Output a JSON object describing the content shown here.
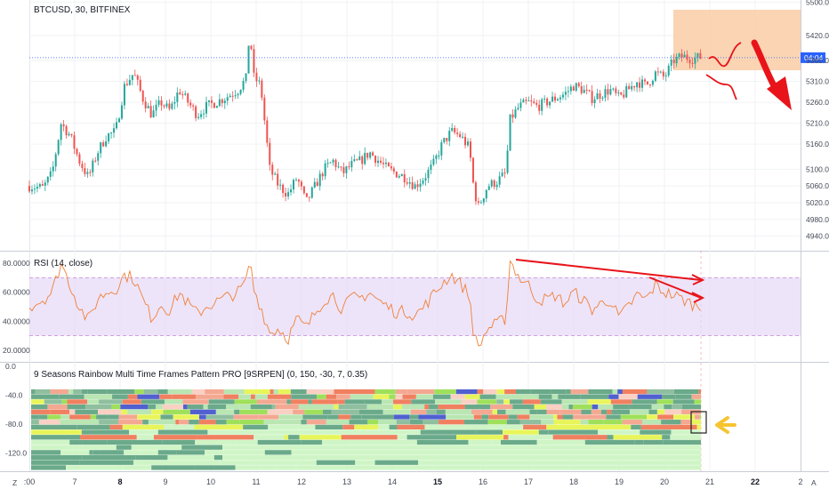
{
  "chart_data": [
    {
      "type": "candlestick",
      "title": "BTCUSD, 30, BITFINEX",
      "price_tag": "04:04",
      "current_price": 5367,
      "ylim": [
        4905,
        5505
      ],
      "y_ticks": [
        5500.0,
        5420.0,
        5360.0,
        5310.0,
        5260.0,
        5210.0,
        5160.0,
        5100.0,
        5060.0,
        5020.0,
        4980.0,
        4940.0
      ],
      "y_tick_labels": [
        "5500.0",
        "5420.0",
        "5360.0",
        "5310.0",
        "5260.0",
        "5210.0",
        "5160.0",
        "5100.0",
        "5060.0",
        "5020.0",
        "4980.0",
        "4940.0"
      ],
      "close_path": [
        [
          6.0,
          5060
        ],
        [
          6.3,
          5055
        ],
        [
          6.5,
          5090
        ],
        [
          6.7,
          5210
        ],
        [
          6.9,
          5180
        ],
        [
          7.1,
          5120
        ],
        [
          7.3,
          5080
        ],
        [
          7.5,
          5140
        ],
        [
          7.7,
          5180
        ],
        [
          7.9,
          5190
        ],
        [
          8.1,
          5300
        ],
        [
          8.3,
          5330
        ],
        [
          8.5,
          5270
        ],
        [
          8.7,
          5230
        ],
        [
          8.9,
          5260
        ],
        [
          9.1,
          5240
        ],
        [
          9.3,
          5290
        ],
        [
          9.5,
          5260
        ],
        [
          9.7,
          5230
        ],
        [
          9.9,
          5250
        ],
        [
          10.1,
          5260
        ],
        [
          10.3,
          5270
        ],
        [
          10.6,
          5290
        ],
        [
          10.8,
          5320
        ],
        [
          10.85,
          5440
        ],
        [
          10.95,
          5320
        ],
        [
          11.1,
          5300
        ],
        [
          11.3,
          5100
        ],
        [
          11.5,
          5060
        ],
        [
          11.7,
          5040
        ],
        [
          11.9,
          5080
        ],
        [
          12.1,
          5020
        ],
        [
          12.3,
          5060
        ],
        [
          12.5,
          5100
        ],
        [
          12.7,
          5120
        ],
        [
          12.9,
          5090
        ],
        [
          13.1,
          5110
        ],
        [
          13.3,
          5120
        ],
        [
          13.5,
          5140
        ],
        [
          13.7,
          5120
        ],
        [
          13.9,
          5100
        ],
        [
          14.1,
          5090
        ],
        [
          14.3,
          5080
        ],
        [
          14.5,
          5060
        ],
        [
          14.7,
          5080
        ],
        [
          14.9,
          5110
        ],
        [
          15.1,
          5160
        ],
        [
          15.3,
          5190
        ],
        [
          15.5,
          5180
        ],
        [
          15.7,
          5150
        ],
        [
          15.8,
          5050
        ],
        [
          15.9,
          5010
        ],
        [
          16.1,
          5060
        ],
        [
          16.3,
          5070
        ],
        [
          16.5,
          5090
        ],
        [
          16.6,
          5220
        ],
        [
          16.8,
          5250
        ],
        [
          17.0,
          5260
        ],
        [
          17.2,
          5250
        ],
        [
          17.4,
          5260
        ],
        [
          17.6,
          5270
        ],
        [
          17.8,
          5280
        ],
        [
          18.0,
          5300
        ],
        [
          18.2,
          5290
        ],
        [
          18.4,
          5270
        ],
        [
          18.6,
          5280
        ],
        [
          18.8,
          5290
        ],
        [
          19.0,
          5270
        ],
        [
          19.2,
          5290
        ],
        [
          19.4,
          5310
        ],
        [
          19.6,
          5300
        ],
        [
          19.8,
          5330
        ],
        [
          20.0,
          5320
        ],
        [
          20.2,
          5360
        ],
        [
          20.4,
          5370
        ],
        [
          20.6,
          5365
        ],
        [
          20.8,
          5368
        ]
      ],
      "annotations": [
        "target zone rectangle",
        "red projection arrows"
      ]
    },
    {
      "type": "line",
      "title": "RSI (14, close)",
      "ylim": [
        12,
        88
      ],
      "y_ticks": [
        80,
        60,
        40,
        20
      ],
      "y_tick_labels": [
        "80.0000",
        "60.0000",
        "40.0000",
        "20.0000"
      ],
      "band": [
        30,
        70
      ],
      "path": [
        [
          6.0,
          50
        ],
        [
          6.3,
          55
        ],
        [
          6.5,
          60
        ],
        [
          6.7,
          80
        ],
        [
          6.9,
          65
        ],
        [
          7.1,
          50
        ],
        [
          7.3,
          40
        ],
        [
          7.5,
          55
        ],
        [
          7.7,
          60
        ],
        [
          7.9,
          62
        ],
        [
          8.1,
          72
        ],
        [
          8.3,
          70
        ],
        [
          8.5,
          55
        ],
        [
          8.7,
          42
        ],
        [
          8.9,
          52
        ],
        [
          9.1,
          47
        ],
        [
          9.3,
          60
        ],
        [
          9.5,
          52
        ],
        [
          9.7,
          45
        ],
        [
          9.9,
          50
        ],
        [
          10.1,
          53
        ],
        [
          10.3,
          56
        ],
        [
          10.6,
          60
        ],
        [
          10.8,
          68
        ],
        [
          10.85,
          84
        ],
        [
          10.95,
          62
        ],
        [
          11.1,
          50
        ],
        [
          11.3,
          32
        ],
        [
          11.5,
          35
        ],
        [
          11.7,
          28
        ],
        [
          11.9,
          42
        ],
        [
          12.1,
          35
        ],
        [
          12.3,
          46
        ],
        [
          12.5,
          55
        ],
        [
          12.7,
          58
        ],
        [
          12.9,
          48
        ],
        [
          13.1,
          56
        ],
        [
          13.3,
          56
        ],
        [
          13.5,
          60
        ],
        [
          13.7,
          54
        ],
        [
          13.9,
          50
        ],
        [
          14.1,
          46
        ],
        [
          14.3,
          47
        ],
        [
          14.5,
          44
        ],
        [
          14.7,
          50
        ],
        [
          14.9,
          58
        ],
        [
          15.1,
          66
        ],
        [
          15.3,
          72
        ],
        [
          15.5,
          66
        ],
        [
          15.7,
          58
        ],
        [
          15.8,
          30
        ],
        [
          15.9,
          22
        ],
        [
          16.1,
          35
        ],
        [
          16.3,
          38
        ],
        [
          16.5,
          42
        ],
        [
          16.6,
          82
        ],
        [
          16.8,
          70
        ],
        [
          17.0,
          65
        ],
        [
          17.2,
          55
        ],
        [
          17.4,
          55
        ],
        [
          17.6,
          58
        ],
        [
          17.8,
          52
        ],
        [
          18.0,
          60
        ],
        [
          18.2,
          55
        ],
        [
          18.4,
          48
        ],
        [
          18.6,
          52
        ],
        [
          18.8,
          55
        ],
        [
          19.0,
          42
        ],
        [
          19.2,
          50
        ],
        [
          19.4,
          58
        ],
        [
          19.6,
          55
        ],
        [
          19.8,
          65
        ],
        [
          20.0,
          60
        ],
        [
          20.2,
          58
        ],
        [
          20.4,
          55
        ],
        [
          20.6,
          52
        ],
        [
          20.8,
          50
        ]
      ],
      "annotations": [
        "red divergence trend lines"
      ]
    },
    {
      "type": "heatmap",
      "title": "9 Seasons Rainbow Multi Time Frames Pattern PRO [9SRPEN] (0, 150, -30, 7, 0.35)",
      "ylim": [
        -145,
        5
      ],
      "y_ticks": [
        0,
        -40,
        -80,
        -120
      ],
      "y_tick_labels": [
        "0.0",
        "-40.0",
        "-80.0",
        "-120.0"
      ],
      "rows": [
        -35,
        -42,
        -49,
        -56,
        -63,
        -70,
        -77,
        -84,
        -91,
        -98,
        -105,
        -112,
        -119,
        -126,
        -133,
        -140
      ]
    }
  ],
  "x_axis": {
    "labels": [
      {
        "t": 6.0,
        "text": ":00"
      },
      {
        "t": 7.0,
        "text": "7"
      },
      {
        "t": 8.0,
        "text": "8"
      },
      {
        "t": 9.0,
        "text": "9"
      },
      {
        "t": 10.0,
        "text": "10"
      },
      {
        "t": 11.0,
        "text": "11"
      },
      {
        "t": 12.0,
        "text": "12"
      },
      {
        "t": 13.0,
        "text": "13"
      },
      {
        "t": 14.0,
        "text": "14"
      },
      {
        "t": 15.0,
        "text": "15"
      },
      {
        "t": 16.0,
        "text": "16"
      },
      {
        "t": 17.0,
        "text": "17"
      },
      {
        "t": 18.0,
        "text": "18"
      },
      {
        "t": 19.0,
        "text": "19"
      },
      {
        "t": 20.0,
        "text": "20"
      },
      {
        "t": 21.0,
        "text": "21"
      },
      {
        "t": 22.0,
        "text": "22"
      },
      {
        "t": 23.0,
        "text": "2"
      }
    ],
    "bold": [
      "8",
      "15",
      "22"
    ],
    "range": [
      6.0,
      23.0
    ]
  },
  "corner": {
    "left": "Z",
    "right": "A"
  },
  "colors": {
    "up": "#26a69a",
    "down": "#ef5350",
    "rsi_line": "#f08038",
    "rsi_band": "#e6d8f7",
    "price_line": "#2962ff",
    "annotation": "#e8141a",
    "zone": "#f9cda6",
    "arrow_yellow": "#f7c431"
  }
}
